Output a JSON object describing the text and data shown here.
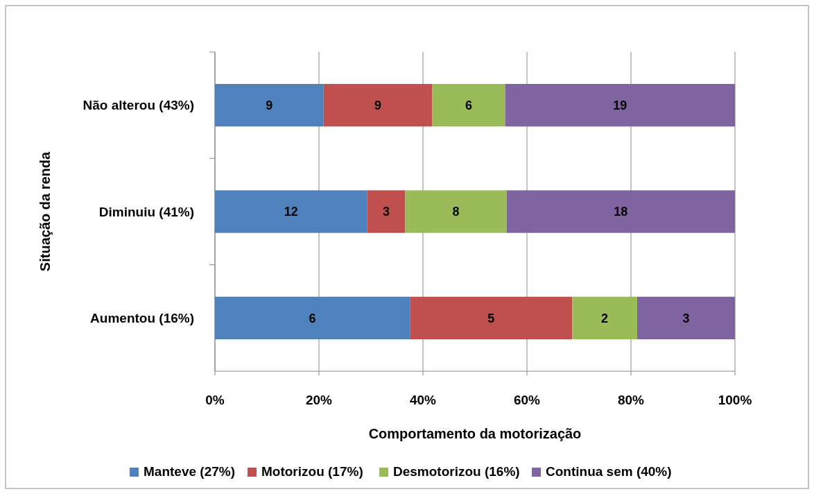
{
  "chart_data": {
    "type": "bar",
    "orientation": "horizontal",
    "stacked": true,
    "xlabel": "Comportamento da motorização",
    "ylabel": "Situação da renda",
    "categories": [
      "Não alterou (43%)",
      "Diminuiu (41%)",
      "Aumentou (16%)"
    ],
    "series": [
      {
        "name": "Manteve (27%)",
        "color": "#4f81bd",
        "values": [
          20.9,
          29.3,
          37.5
        ]
      },
      {
        "name": "Motorizou (17%)",
        "color": "#c0504d",
        "values": [
          20.9,
          7.3,
          31.2
        ]
      },
      {
        "name": "Desmotorizou (16%)",
        "color": "#9bbb59",
        "values": [
          14.0,
          19.5,
          12.5
        ]
      },
      {
        "name": "Continua sem (40%)",
        "color": "#8064a2",
        "values": [
          44.2,
          43.9,
          18.8
        ]
      }
    ],
    "annotations": [
      "9",
      "9",
      "6",
      "19",
      "12",
      "3",
      "8",
      "18",
      "6",
      "5",
      "2",
      "3"
    ],
    "xlim": [
      0,
      100
    ],
    "xticks": [
      {
        "value": 0,
        "label": "0%"
      },
      {
        "value": 20,
        "label": "20%"
      },
      {
        "value": 40,
        "label": "40%"
      },
      {
        "value": 60,
        "label": "60%"
      },
      {
        "value": 80,
        "label": "80%"
      },
      {
        "value": 100,
        "label": "100%"
      }
    ],
    "grid": "x",
    "legend": "bottom"
  }
}
